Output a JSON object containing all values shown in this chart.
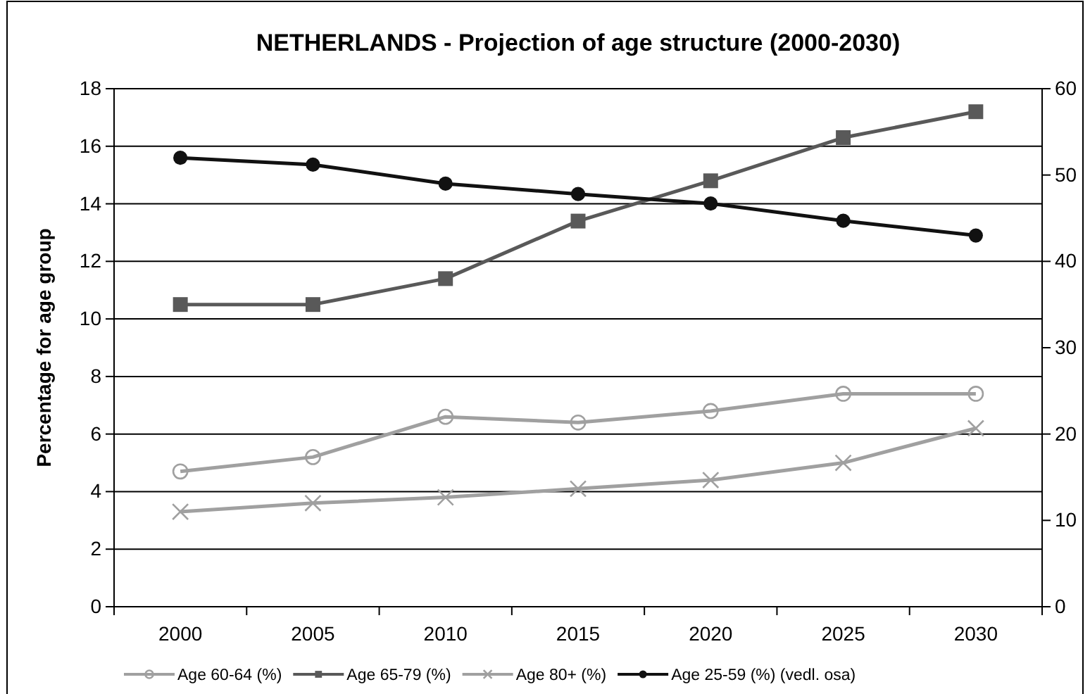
{
  "chart_data": {
    "type": "line",
    "title": "NETHERLANDS - Projection of age structure (2000-2030)",
    "ylabel": "Percentage for age group",
    "categories": [
      "2000",
      "2005",
      "2010",
      "2015",
      "2020",
      "2025",
      "2030"
    ],
    "series": [
      {
        "name": "Age 60-64 (%)",
        "color": "#a0a0a0",
        "marker": "circle",
        "values": [
          4.7,
          5.2,
          6.6,
          6.4,
          6.8,
          7.4,
          7.4
        ]
      },
      {
        "name": "Age 65-79 (%)",
        "color": "#595959",
        "marker": "square",
        "values": [
          10.5,
          10.5,
          11.4,
          13.4,
          14.8,
          16.3,
          17.2
        ]
      },
      {
        "name": "Age 80+ (%)",
        "color": "#a0a0a0",
        "marker": "cross",
        "values": [
          3.3,
          3.6,
          3.8,
          4.1,
          4.4,
          5.0,
          6.2
        ]
      },
      {
        "name": "Age 25-59 (%) (vedl. osa)",
        "color": "#111111",
        "marker": "circle",
        "axis": "y2",
        "values": [
          52,
          51.2,
          49,
          47.8,
          46.7,
          44.7,
          43
        ]
      }
    ],
    "ylim": [
      0,
      18
    ],
    "yticks": [
      0,
      2,
      4,
      6,
      8,
      10,
      12,
      14,
      16,
      18
    ],
    "y2lim": [
      0,
      60
    ],
    "y2ticks": [
      0,
      10,
      20,
      30,
      40,
      50,
      60
    ],
    "grid": "y",
    "legend": "bottom"
  }
}
